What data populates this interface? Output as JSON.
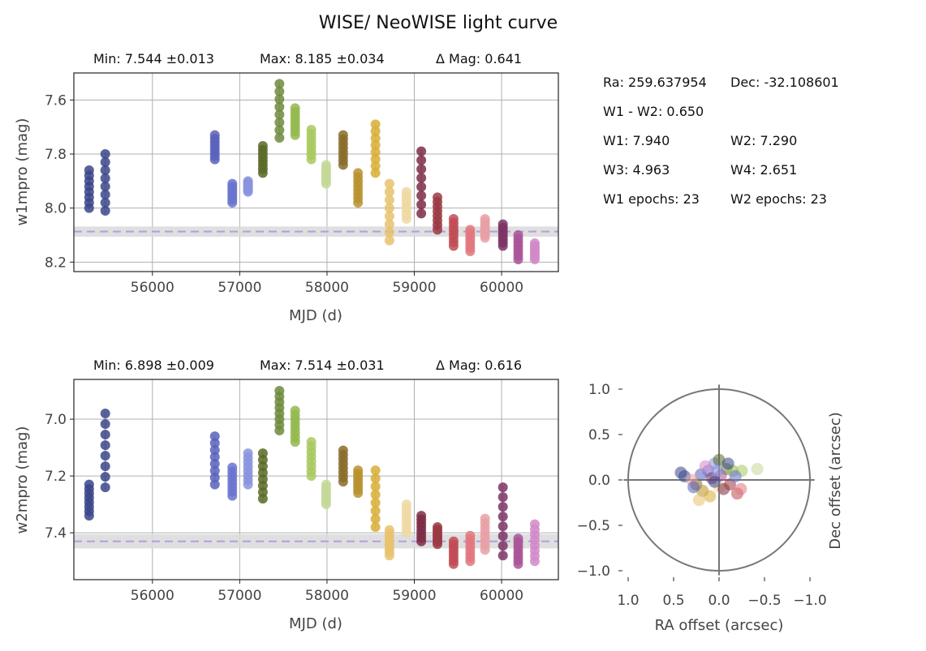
{
  "title": "WISE/ NeoWISE light curve",
  "info": {
    "ra": "Ra: 259.637954",
    "dec": "Dec: -32.108601",
    "color": "W1 - W2: 0.650",
    "w1": "W1: 7.940",
    "w2": "W2: 7.290",
    "w3": "W3: 4.963",
    "w4": "W4: 2.651",
    "w1_epochs": "W1 epochs: 23",
    "w2_epochs": "W2 epochs: 23"
  },
  "colors": {
    "epoch_palette": [
      "#3b4689",
      "#3b4689",
      "#5961bb",
      "#6a74cf",
      "#8a93dd",
      "#596a27",
      "#6e8b3d",
      "#93b84e",
      "#a9c95f",
      "#c6d898",
      "#8a6b2a",
      "#b8922f",
      "#d8ae36",
      "#e8c26e",
      "#efd9a3",
      "#7d2d45",
      "#9a3a44",
      "#c14b55",
      "#e2787f",
      "#e7a0a6",
      "#7d3566",
      "#a85599",
      "#d18ac9"
    ],
    "median_line": "#b59ce0",
    "error_band": "#d9d9d9"
  },
  "chart_data": [
    {
      "type": "scatter",
      "id": "w1",
      "stats": {
        "min": "Min: 7.544 ±0.013",
        "max": "Max: 8.185 ±0.034",
        "delta": "Δ Mag: 0.641"
      },
      "xlabel": "MJD (d)",
      "ylabel": "w1mpro (mag)",
      "xlim": [
        55100,
        60650
      ],
      "ylim": [
        8.235,
        7.5
      ],
      "xticks": [
        56000,
        57000,
        58000,
        59000,
        60000
      ],
      "yticks": [
        7.6,
        7.8,
        8.0,
        8.2
      ],
      "ytick_labels": [
        "7.6",
        "7.8",
        "8.0",
        "8.2"
      ],
      "median": 8.087,
      "band": [
        8.068,
        8.106
      ],
      "epochs": [
        {
          "mjd": 55275,
          "min": 7.86,
          "max": 8.0
        },
        {
          "mjd": 55460,
          "min": 7.8,
          "max": 8.01
        },
        {
          "mjd": 56715,
          "min": 7.73,
          "max": 7.82
        },
        {
          "mjd": 56915,
          "min": 7.91,
          "max": 7.98
        },
        {
          "mjd": 57095,
          "min": 7.9,
          "max": 7.94
        },
        {
          "mjd": 57265,
          "min": 7.77,
          "max": 7.87
        },
        {
          "mjd": 57455,
          "min": 7.54,
          "max": 7.74
        },
        {
          "mjd": 57635,
          "min": 7.63,
          "max": 7.73
        },
        {
          "mjd": 57820,
          "min": 7.71,
          "max": 7.82
        },
        {
          "mjd": 57990,
          "min": 7.84,
          "max": 7.91
        },
        {
          "mjd": 58185,
          "min": 7.73,
          "max": 7.84
        },
        {
          "mjd": 58355,
          "min": 7.87,
          "max": 7.98
        },
        {
          "mjd": 58555,
          "min": 7.69,
          "max": 7.87
        },
        {
          "mjd": 58715,
          "min": 7.91,
          "max": 8.12
        },
        {
          "mjd": 58910,
          "min": 7.94,
          "max": 8.04
        },
        {
          "mjd": 59080,
          "min": 7.79,
          "max": 8.02
        },
        {
          "mjd": 59265,
          "min": 7.96,
          "max": 8.08
        },
        {
          "mjd": 59450,
          "min": 8.04,
          "max": 8.14
        },
        {
          "mjd": 59640,
          "min": 8.08,
          "max": 8.16
        },
        {
          "mjd": 59810,
          "min": 8.04,
          "max": 8.11
        },
        {
          "mjd": 60015,
          "min": 8.06,
          "max": 8.14
        },
        {
          "mjd": 60190,
          "min": 8.1,
          "max": 8.19
        },
        {
          "mjd": 60380,
          "min": 8.13,
          "max": 8.19
        }
      ]
    },
    {
      "type": "scatter",
      "id": "w2",
      "stats": {
        "min": "Min: 6.898 ±0.009",
        "max": "Max: 7.514 ±0.031",
        "delta": "Δ Mag: 0.616"
      },
      "xlabel": "MJD (d)",
      "ylabel": "w2mpro (mag)",
      "xlim": [
        55100,
        60650
      ],
      "ylim": [
        7.565,
        6.86
      ],
      "xticks": [
        56000,
        57000,
        58000,
        59000,
        60000
      ],
      "yticks": [
        7.0,
        7.2,
        7.4
      ],
      "ytick_labels": [
        "7.0",
        "7.2",
        "7.4"
      ],
      "median": 7.43,
      "band": [
        7.405,
        7.455
      ],
      "epochs": [
        {
          "mjd": 55275,
          "min": 7.23,
          "max": 7.34
        },
        {
          "mjd": 55460,
          "min": 6.98,
          "max": 7.24
        },
        {
          "mjd": 56715,
          "min": 7.06,
          "max": 7.23
        },
        {
          "mjd": 56915,
          "min": 7.17,
          "max": 7.27
        },
        {
          "mjd": 57095,
          "min": 7.12,
          "max": 7.23
        },
        {
          "mjd": 57265,
          "min": 7.12,
          "max": 7.28
        },
        {
          "mjd": 57455,
          "min": 6.9,
          "max": 7.04
        },
        {
          "mjd": 57635,
          "min": 6.97,
          "max": 7.08
        },
        {
          "mjd": 57820,
          "min": 7.08,
          "max": 7.2
        },
        {
          "mjd": 57990,
          "min": 7.23,
          "max": 7.3
        },
        {
          "mjd": 58185,
          "min": 7.11,
          "max": 7.22
        },
        {
          "mjd": 58355,
          "min": 7.18,
          "max": 7.26
        },
        {
          "mjd": 58555,
          "min": 7.18,
          "max": 7.38
        },
        {
          "mjd": 58715,
          "min": 7.39,
          "max": 7.48
        },
        {
          "mjd": 58910,
          "min": 7.3,
          "max": 7.4
        },
        {
          "mjd": 59080,
          "min": 7.34,
          "max": 7.43
        },
        {
          "mjd": 59265,
          "min": 7.38,
          "max": 7.44
        },
        {
          "mjd": 59450,
          "min": 7.43,
          "max": 7.51
        },
        {
          "mjd": 59640,
          "min": 7.41,
          "max": 7.5
        },
        {
          "mjd": 59810,
          "min": 7.35,
          "max": 7.46
        },
        {
          "mjd": 60015,
          "min": 7.24,
          "max": 7.48
        },
        {
          "mjd": 60190,
          "min": 7.42,
          "max": 7.51
        },
        {
          "mjd": 60380,
          "min": 7.37,
          "max": 7.5
        }
      ]
    },
    {
      "type": "scatter",
      "id": "astrometry",
      "xlabel": "RA offset (arcsec)",
      "ylabel": "Dec offset (arcsec)",
      "xlim": [
        1.0,
        -1.0
      ],
      "ylim": [
        -1.0,
        1.0
      ],
      "xticks": [
        1.0,
        0.5,
        0.0,
        -0.5,
        -1.0
      ],
      "xtick_labels": [
        "1.0",
        "0.5",
        "0.0",
        "−0.5",
        "−1.0"
      ],
      "yticks": [
        1.0,
        0.5,
        0.0,
        -0.5,
        -1.0
      ],
      "ytick_labels": [
        "1.0",
        "0.5",
        "0.0",
        "−0.5",
        "−1.0"
      ],
      "circle_radius": 1.0,
      "points": [
        [
          0.42,
          0.08
        ],
        [
          0.38,
          0.04
        ],
        [
          0.2,
          0.06
        ],
        [
          0.12,
          0.1
        ],
        [
          0.05,
          0.18
        ],
        [
          0.0,
          0.22
        ],
        [
          -0.08,
          0.12
        ],
        [
          -0.15,
          0.1
        ],
        [
          -0.25,
          0.1
        ],
        [
          -0.42,
          0.12
        ],
        [
          0.25,
          -0.05
        ],
        [
          0.18,
          -0.12
        ],
        [
          0.1,
          -0.18
        ],
        [
          0.22,
          -0.22
        ],
        [
          0.0,
          -0.08
        ],
        [
          -0.05,
          -0.1
        ],
        [
          -0.12,
          -0.05
        ],
        [
          -0.2,
          -0.15
        ],
        [
          -0.24,
          -0.1
        ],
        [
          0.3,
          0.0
        ],
        [
          0.08,
          0.02
        ],
        [
          -0.02,
          0.05
        ],
        [
          0.15,
          0.15
        ],
        [
          -0.1,
          0.18
        ],
        [
          0.05,
          -0.02
        ],
        [
          0.28,
          -0.08
        ],
        [
          -0.18,
          0.04
        ],
        [
          0.02,
          0.1
        ]
      ]
    }
  ]
}
